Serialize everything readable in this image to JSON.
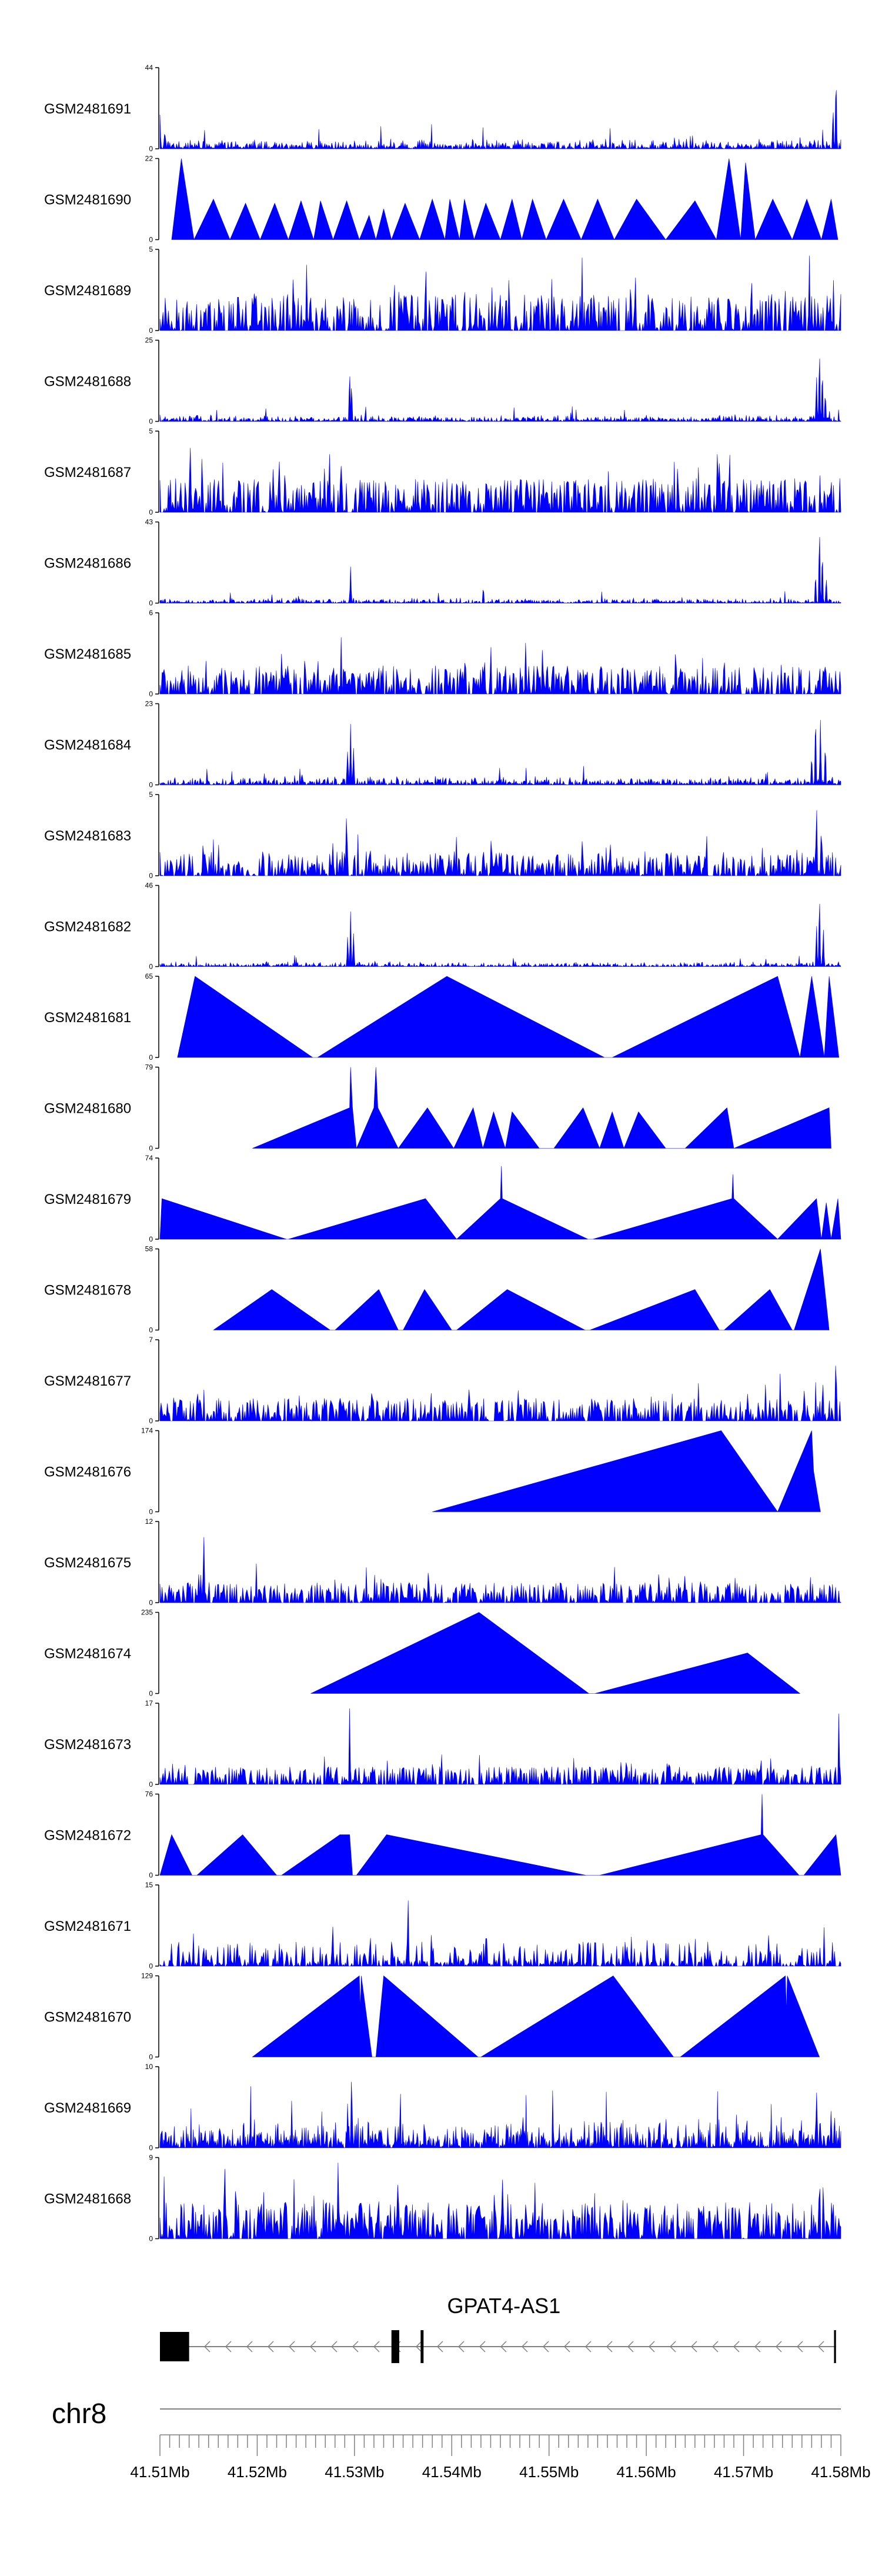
{
  "chart_data": {
    "type": "area",
    "title": "",
    "xlabel": "",
    "ylabel": "",
    "chromosome": "chr8",
    "xlim": [
      41.51,
      41.58
    ],
    "x_ticks": [
      "41.51Mb",
      "41.52Mb",
      "41.53Mb",
      "41.54Mb",
      "41.55Mb",
      "41.56Mb",
      "41.57Mb",
      "41.58Mb"
    ],
    "colors": {
      "signal": "#0000ff",
      "axis": "#000000",
      "gene": "#000000",
      "ideogram": "#808080"
    },
    "tracks": [
      {
        "name": "GSM2481691",
        "ymax": "44",
        "ymax_value": 44,
        "profile": "noise",
        "seed": 11,
        "peaks": [
          [
            41.51,
            0.42
          ],
          [
            41.5105,
            0.25
          ],
          [
            41.5795,
            1.0
          ],
          [
            41.5792,
            0.55
          ]
        ],
        "base": 0.06
      },
      {
        "name": "GSM2481690",
        "ymax": "22",
        "ymax_value": 22,
        "profile": "sparse",
        "points": [
          [
            41.5112,
            0
          ],
          [
            41.5122,
            1.0
          ],
          [
            41.5135,
            0
          ],
          [
            41.5155,
            0.5
          ],
          [
            41.5172,
            0
          ],
          [
            41.5188,
            0.45
          ],
          [
            41.5203,
            0
          ],
          [
            41.5218,
            0.45
          ],
          [
            41.5232,
            0
          ],
          [
            41.5245,
            0.48
          ],
          [
            41.5258,
            0
          ],
          [
            41.5265,
            0.48
          ],
          [
            41.5278,
            0
          ],
          [
            41.5292,
            0.48
          ],
          [
            41.5305,
            0
          ],
          [
            41.5315,
            0.3
          ],
          [
            41.5322,
            0
          ],
          [
            41.533,
            0.38
          ],
          [
            41.5338,
            0
          ],
          [
            41.5352,
            0.45
          ],
          [
            41.5367,
            0
          ],
          [
            41.538,
            0.5
          ],
          [
            41.5393,
            0
          ],
          [
            41.5398,
            0.5
          ],
          [
            41.5408,
            0
          ],
          [
            41.5413,
            0.5
          ],
          [
            41.5423,
            0
          ],
          [
            41.5435,
            0.45
          ],
          [
            41.545,
            0
          ],
          [
            41.5462,
            0.5
          ],
          [
            41.5472,
            0
          ],
          [
            41.5483,
            0.5
          ],
          [
            41.5497,
            0
          ],
          [
            41.5515,
            0.5
          ],
          [
            41.5533,
            0
          ],
          [
            41.555,
            0.5
          ],
          [
            41.5567,
            0
          ],
          [
            41.559,
            0.5
          ],
          [
            41.562,
            0
          ],
          [
            41.565,
            0.48
          ],
          [
            41.5672,
            0
          ],
          [
            41.5685,
            1.0
          ],
          [
            41.5697,
            0
          ],
          [
            41.5702,
            0.95
          ],
          [
            41.5712,
            0
          ],
          [
            41.573,
            0.5
          ],
          [
            41.575,
            0
          ],
          [
            41.5765,
            0.5
          ],
          [
            41.578,
            0
          ],
          [
            41.579,
            0.5
          ],
          [
            41.5797,
            0
          ]
        ]
      },
      {
        "name": "GSM2481689",
        "ymax": "5",
        "ymax_value": 5,
        "profile": "dense",
        "seed": 23,
        "peaks": [],
        "base": 0.45
      },
      {
        "name": "GSM2481688",
        "ymax": "25",
        "ymax_value": 25,
        "profile": "noise",
        "seed": 37,
        "peaks": [
          [
            41.5295,
            0.68
          ],
          [
            41.5297,
            0.5
          ],
          [
            41.5775,
            0.6
          ],
          [
            41.5778,
            0.95
          ],
          [
            41.5781,
            0.7
          ],
          [
            41.5784,
            0.4
          ]
        ],
        "base": 0.04
      },
      {
        "name": "GSM2481687",
        "ymax": "5",
        "ymax_value": 5,
        "profile": "dense",
        "seed": 41,
        "peaks": [],
        "base": 0.42
      },
      {
        "name": "GSM2481686",
        "ymax": "43",
        "ymax_value": 43,
        "profile": "noise",
        "seed": 53,
        "peaks": [
          [
            41.5296,
            0.45
          ],
          [
            41.5774,
            0.4
          ],
          [
            41.5778,
            1.0
          ],
          [
            41.5781,
            0.7
          ],
          [
            41.5785,
            0.35
          ]
        ],
        "base": 0.03
      },
      {
        "name": "GSM2481685",
        "ymax": "6",
        "ymax_value": 6,
        "profile": "dense",
        "seed": 67,
        "peaks": [],
        "base": 0.35
      },
      {
        "name": "GSM2481684",
        "ymax": "23",
        "ymax_value": 23,
        "profile": "noise",
        "seed": 71,
        "peaks": [
          [
            41.5293,
            0.45
          ],
          [
            41.5296,
            0.75
          ],
          [
            41.5299,
            0.5
          ],
          [
            41.577,
            0.4
          ],
          [
            41.5774,
            0.95
          ],
          [
            41.5779,
            0.8
          ],
          [
            41.5784,
            0.55
          ]
        ],
        "base": 0.05
      },
      {
        "name": "GSM2481683",
        "ymax": "5",
        "ymax_value": 5,
        "profile": "dense",
        "seed": 83,
        "peaks": [
          [
            41.5292,
            0.95
          ],
          [
            41.5775,
            1.0
          ],
          [
            41.578,
            0.8
          ]
        ],
        "base": 0.3
      },
      {
        "name": "GSM2481682",
        "ymax": "46",
        "ymax_value": 46,
        "profile": "noise",
        "seed": 97,
        "peaks": [
          [
            41.5293,
            0.4
          ],
          [
            41.5296,
            0.68
          ],
          [
            41.5299,
            0.45
          ],
          [
            41.5775,
            0.55
          ],
          [
            41.5778,
            0.95
          ],
          [
            41.5782,
            0.5
          ]
        ],
        "base": 0.03
      },
      {
        "name": "GSM2481681",
        "ymax": "65",
        "ymax_value": 65,
        "profile": "sparse",
        "points": [
          [
            41.5118,
            0
          ],
          [
            41.5136,
            1.0
          ],
          [
            41.5257,
            0
          ],
          [
            41.5262,
            0
          ],
          [
            41.5395,
            1.0
          ],
          [
            41.5557,
            0
          ],
          [
            41.5565,
            0
          ],
          [
            41.5735,
            1.0
          ],
          [
            41.5758,
            0
          ],
          [
            41.577,
            1.0
          ],
          [
            41.5783,
            0
          ],
          [
            41.5788,
            1.0
          ],
          [
            41.5798,
            0
          ]
        ]
      },
      {
        "name": "GSM2481680",
        "ymax": "79",
        "ymax_value": 79,
        "profile": "sparse",
        "points": [
          [
            41.5195,
            0
          ],
          [
            41.5295,
            0.5
          ],
          [
            41.5296,
            1.0
          ],
          [
            41.5298,
            0.5
          ],
          [
            41.5302,
            0
          ],
          [
            41.532,
            0.5
          ],
          [
            41.5322,
            1.0
          ],
          [
            41.5324,
            0.5
          ],
          [
            41.5345,
            0
          ],
          [
            41.5375,
            0.5
          ],
          [
            41.5402,
            0
          ],
          [
            41.5422,
            0.5
          ],
          [
            41.5432,
            0
          ],
          [
            41.5443,
            0.45
          ],
          [
            41.5455,
            0
          ],
          [
            41.5462,
            0.45
          ],
          [
            41.549,
            0
          ],
          [
            41.5505,
            0
          ],
          [
            41.5535,
            0.5
          ],
          [
            41.5552,
            0
          ],
          [
            41.5565,
            0.45
          ],
          [
            41.5577,
            0
          ],
          [
            41.5592,
            0.45
          ],
          [
            41.562,
            0
          ],
          [
            41.564,
            0
          ],
          [
            41.5683,
            0.5
          ],
          [
            41.569,
            0
          ],
          [
            41.5788,
            0.5
          ],
          [
            41.579,
            0
          ]
        ]
      },
      {
        "name": "GSM2481679",
        "ymax": "74",
        "ymax_value": 74,
        "profile": "sparse",
        "points": [
          [
            41.51,
            0
          ],
          [
            41.5102,
            0.5
          ],
          [
            41.523,
            0
          ],
          [
            41.5232,
            0
          ],
          [
            41.5373,
            0.5
          ],
          [
            41.5405,
            0
          ],
          [
            41.545,
            0.5
          ],
          [
            41.5451,
            0.9
          ],
          [
            41.5452,
            0.5
          ],
          [
            41.554,
            0
          ],
          [
            41.5545,
            0
          ],
          [
            41.5688,
            0.5
          ],
          [
            41.5689,
            0.8
          ],
          [
            41.569,
            0.5
          ],
          [
            41.5735,
            0
          ],
          [
            41.5775,
            0.5
          ],
          [
            41.578,
            0
          ],
          [
            41.5785,
            0.45
          ],
          [
            41.579,
            0
          ],
          [
            41.5797,
            0.5
          ],
          [
            41.58,
            0
          ]
        ]
      },
      {
        "name": "GSM2481678",
        "ymax": "58",
        "ymax_value": 58,
        "profile": "sparse",
        "points": [
          [
            41.5155,
            0
          ],
          [
            41.5215,
            0.5
          ],
          [
            41.5275,
            0
          ],
          [
            41.528,
            0
          ],
          [
            41.5325,
            0.5
          ],
          [
            41.5345,
            0
          ],
          [
            41.535,
            0
          ],
          [
            41.5372,
            0.5
          ],
          [
            41.54,
            0
          ],
          [
            41.5405,
            0
          ],
          [
            41.5457,
            0.5
          ],
          [
            41.5537,
            0
          ],
          [
            41.5542,
            0
          ],
          [
            41.565,
            0.5
          ],
          [
            41.5675,
            0
          ],
          [
            41.568,
            0
          ],
          [
            41.5727,
            0.5
          ],
          [
            41.575,
            0
          ],
          [
            41.5752,
            0
          ],
          [
            41.5779,
            1.0
          ],
          [
            41.5788,
            0
          ]
        ]
      },
      {
        "name": "GSM2481677",
        "ymax": "7",
        "ymax_value": 7,
        "profile": "dense",
        "seed": 109,
        "peaks": [
          [
            41.5795,
            1.0
          ]
        ],
        "base": 0.28
      },
      {
        "name": "GSM2481676",
        "ymax": "174",
        "ymax_value": 174,
        "profile": "sparse",
        "points": [
          [
            41.538,
            0
          ],
          [
            41.5677,
            1.0
          ],
          [
            41.5735,
            0
          ],
          [
            41.577,
            1.0
          ],
          [
            41.5772,
            0.5
          ],
          [
            41.5779,
            0
          ]
        ]
      },
      {
        "name": "GSM2481675",
        "ymax": "12",
        "ymax_value": 12,
        "profile": "dense",
        "seed": 131,
        "peaks": [
          [
            41.5145,
            1.0
          ],
          [
            41.514,
            0.4
          ]
        ],
        "base": 0.25
      },
      {
        "name": "GSM2481674",
        "ymax": "235",
        "ymax_value": 235,
        "profile": "sparse",
        "points": [
          [
            41.5255,
            0
          ],
          [
            41.5428,
            1.0
          ],
          [
            41.5541,
            0
          ],
          [
            41.5547,
            0
          ],
          [
            41.5704,
            0.5
          ],
          [
            41.5758,
            0
          ]
        ]
      },
      {
        "name": "GSM2481673",
        "ymax": "17",
        "ymax_value": 17,
        "profile": "dense",
        "seed": 149,
        "peaks": [
          [
            41.5295,
            1.0
          ],
          [
            41.5798,
            1.0
          ]
        ],
        "base": 0.22
      },
      {
        "name": "GSM2481672",
        "ymax": "76",
        "ymax_value": 76,
        "profile": "sparse",
        "points": [
          [
            41.51,
            0
          ],
          [
            41.5112,
            0.5
          ],
          [
            41.5133,
            0
          ],
          [
            41.5138,
            0
          ],
          [
            41.5185,
            0.5
          ],
          [
            41.522,
            0
          ],
          [
            41.5225,
            0
          ],
          [
            41.5285,
            0.5
          ],
          [
            41.5295,
            0.5
          ],
          [
            41.5298,
            0
          ],
          [
            41.5302,
            0
          ],
          [
            41.5333,
            0.5
          ],
          [
            41.5538,
            0
          ],
          [
            41.5552,
            0
          ],
          [
            41.5718,
            0.5
          ],
          [
            41.5719,
            1.0
          ],
          [
            41.572,
            0.5
          ],
          [
            41.5757,
            0
          ],
          [
            41.5762,
            0
          ],
          [
            41.5795,
            0.5
          ],
          [
            41.58,
            0
          ]
        ]
      },
      {
        "name": "GSM2481671",
        "ymax": "15",
        "ymax_value": 15,
        "profile": "sparse-noise",
        "seed": 163,
        "peaks": [
          [
            41.5355,
            1.0
          ]
        ],
        "base": 0.3
      },
      {
        "name": "GSM2481670",
        "ymax": "129",
        "ymax_value": 129,
        "profile": "sparse",
        "points": [
          [
            41.5195,
            0
          ],
          [
            41.5305,
            1.0
          ],
          [
            41.5306,
            0.6
          ],
          [
            41.5307,
            1.0
          ],
          [
            41.5318,
            0
          ],
          [
            41.5322,
            0
          ],
          [
            41.533,
            1.0
          ],
          [
            41.5427,
            0
          ],
          [
            41.543,
            0
          ],
          [
            41.5566,
            1.0
          ],
          [
            41.5628,
            0
          ],
          [
            41.5635,
            0
          ],
          [
            41.5743,
            1.0
          ],
          [
            41.5744,
            0.55
          ],
          [
            41.5745,
            1.0
          ],
          [
            41.5778,
            0
          ]
        ]
      },
      {
        "name": "GSM2481669",
        "ymax": "10",
        "ymax_value": 10,
        "profile": "noise",
        "seed": 181,
        "peaks": [
          [
            41.5297,
            1.0
          ],
          [
            41.5293,
            0.6
          ],
          [
            41.5775,
            0.75
          ],
          [
            41.579,
            0.5
          ]
        ],
        "base": 0.18
      },
      {
        "name": "GSM2481668",
        "ymax": "9",
        "ymax_value": 9,
        "profile": "dense",
        "seed": 191,
        "peaks": [
          [
            41.5178,
            0.95
          ],
          [
            41.5283,
            1.0
          ],
          [
            41.5778,
            1.0
          ],
          [
            41.5782,
            0.85
          ]
        ],
        "base": 0.45
      }
    ],
    "gene": {
      "name": "GPAT4-AS1",
      "strand": "-",
      "start": 41.51,
      "end": 41.5795,
      "exons": [
        [
          41.51,
          41.513
        ],
        [
          41.5338,
          41.5346
        ],
        [
          41.5368,
          41.5371
        ],
        [
          41.5793,
          41.5795
        ]
      ]
    }
  }
}
